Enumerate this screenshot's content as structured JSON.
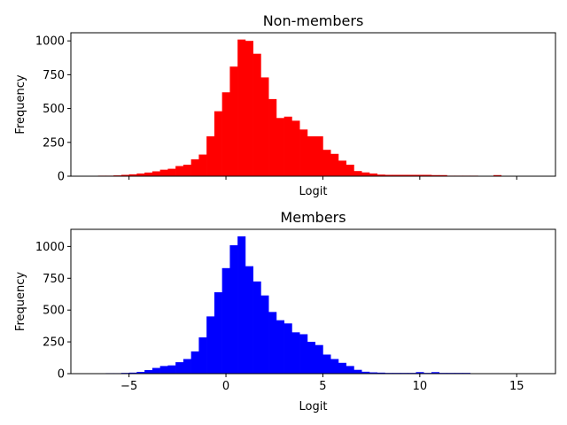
{
  "chart_data": [
    {
      "type": "bar",
      "title": "Non-members",
      "xlabel": "Logit",
      "ylabel": "Frequency",
      "color": "#ff0000",
      "xlim": [
        -8,
        17
      ],
      "ylim": [
        0,
        1060
      ],
      "xticks": [
        -5,
        0,
        5,
        10,
        15
      ],
      "show_xtick_labels": false,
      "yticks": [
        0,
        250,
        500,
        750,
        1000
      ],
      "bin_edges_start": -6.6,
      "bin_width": 0.4,
      "values": [
        4,
        4,
        6,
        10,
        14,
        20,
        27,
        36,
        48,
        55,
        75,
        85,
        125,
        160,
        295,
        480,
        620,
        810,
        1010,
        1000,
        905,
        730,
        570,
        430,
        440,
        410,
        345,
        295,
        295,
        195,
        165,
        115,
        85,
        38,
        28,
        20,
        12,
        10,
        10,
        10,
        10,
        10,
        10,
        8,
        8,
        4,
        4,
        4,
        4,
        2,
        2,
        8,
        0,
        0,
        0
      ]
    },
    {
      "type": "bar",
      "title": "Members",
      "xlabel": "Logit",
      "ylabel": "Frequency",
      "color": "#0000ff",
      "xlim": [
        -8,
        17
      ],
      "ylim": [
        0,
        1135
      ],
      "xticks": [
        -5,
        0,
        5,
        10,
        15
      ],
      "show_xtick_labels": true,
      "yticks": [
        0,
        250,
        500,
        750,
        1000
      ],
      "bin_edges_start": -6.2,
      "bin_width": 0.4,
      "values": [
        4,
        4,
        6,
        8,
        14,
        28,
        45,
        60,
        65,
        90,
        115,
        175,
        285,
        450,
        640,
        830,
        1010,
        1080,
        845,
        725,
        615,
        485,
        420,
        395,
        325,
        310,
        250,
        225,
        150,
        115,
        85,
        60,
        30,
        15,
        10,
        8,
        6,
        6,
        6,
        6,
        12,
        6,
        12,
        6,
        6,
        6,
        6,
        2,
        2,
        2,
        2,
        0,
        0,
        0,
        0
      ]
    }
  ]
}
